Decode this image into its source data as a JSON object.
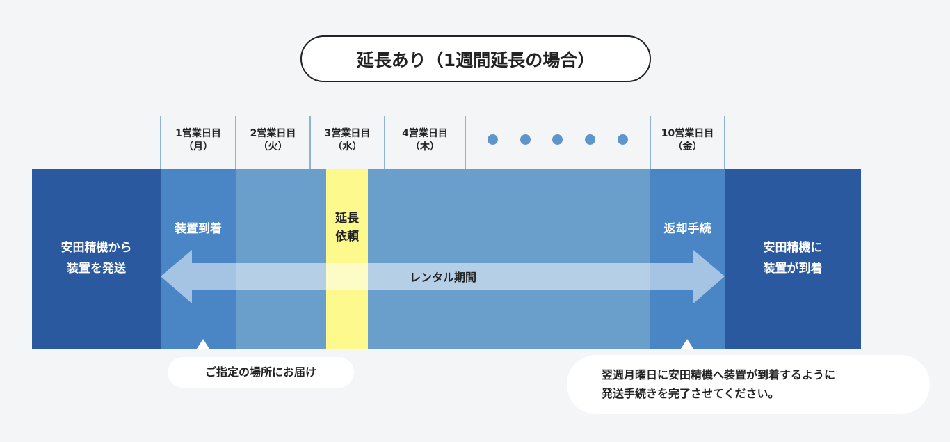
{
  "title": "延長あり（1週間延長の場合）",
  "days": [
    {
      "line1": "1営業日目",
      "line2": "（月）"
    },
    {
      "line1": "2営業日目",
      "line2": "（火）"
    },
    {
      "line1": "3営業日目",
      "line2": "（水）"
    },
    {
      "line1": "4営業日目",
      "line2": "（木）"
    },
    {
      "line1": "10営業日目",
      "line2": "（金）"
    }
  ],
  "left_block": {
    "line1": "安田精機から",
    "line2": "装置を発送"
  },
  "right_block": {
    "line1": "安田精機に",
    "line2": "装置が到着"
  },
  "arrival": "装置到着",
  "extension": {
    "line1": "延長",
    "line2": "依頼"
  },
  "return": "返却手続",
  "rental_period": "レンタル期間",
  "note_left": "ご指定の場所にお届け",
  "note_right": {
    "line1": "翌週月曜日に安田精機へ装置が到着するように",
    "line2": "発送手続きを完了させてください。"
  },
  "colors": {
    "dark": "#2a59a0",
    "mid": "#4a86c5",
    "light": "#6a9fcc",
    "highlight": "#fdf98d",
    "bg": "#f4f5f7"
  }
}
